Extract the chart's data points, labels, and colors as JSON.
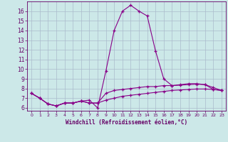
{
  "xlabel": "Windchill (Refroidissement éolien,°C)",
  "bg_color": "#cce8e8",
  "grid_color": "#aabbcc",
  "line_color": "#880088",
  "x": [
    0,
    1,
    2,
    3,
    4,
    5,
    6,
    7,
    8,
    9,
    10,
    11,
    12,
    13,
    14,
    15,
    16,
    17,
    18,
    19,
    20,
    21,
    22,
    23
  ],
  "line1": [
    7.5,
    7.0,
    6.4,
    6.2,
    6.5,
    6.5,
    6.7,
    6.8,
    6.0,
    9.8,
    14.0,
    16.0,
    16.6,
    16.0,
    15.5,
    11.9,
    9.0,
    8.3,
    8.4,
    8.5,
    8.5,
    8.4,
    7.9,
    7.8
  ],
  "line2": [
    7.5,
    7.0,
    6.4,
    6.2,
    6.5,
    6.5,
    6.7,
    6.5,
    6.5,
    7.5,
    7.8,
    7.9,
    8.0,
    8.1,
    8.2,
    8.2,
    8.3,
    8.3,
    8.35,
    8.4,
    8.45,
    8.4,
    8.1,
    7.8
  ],
  "line3": [
    7.5,
    7.0,
    6.4,
    6.2,
    6.5,
    6.5,
    6.7,
    6.5,
    6.5,
    6.8,
    7.0,
    7.2,
    7.3,
    7.4,
    7.5,
    7.6,
    7.7,
    7.8,
    7.85,
    7.9,
    7.95,
    7.95,
    7.9,
    7.8
  ],
  "ylim_min": 5.7,
  "ylim_max": 17.0,
  "yticks": [
    6,
    7,
    8,
    9,
    10,
    11,
    12,
    13,
    14,
    15,
    16
  ],
  "xlim_min": -0.5,
  "xlim_max": 23.5,
  "xticks": [
    0,
    1,
    2,
    3,
    4,
    5,
    6,
    7,
    8,
    9,
    10,
    11,
    12,
    13,
    14,
    15,
    16,
    17,
    18,
    19,
    20,
    21,
    22,
    23
  ],
  "tick_color": "#660066",
  "label_fontsize": 5.5,
  "tick_fontsize_x": 4.5,
  "tick_fontsize_y": 5.5
}
